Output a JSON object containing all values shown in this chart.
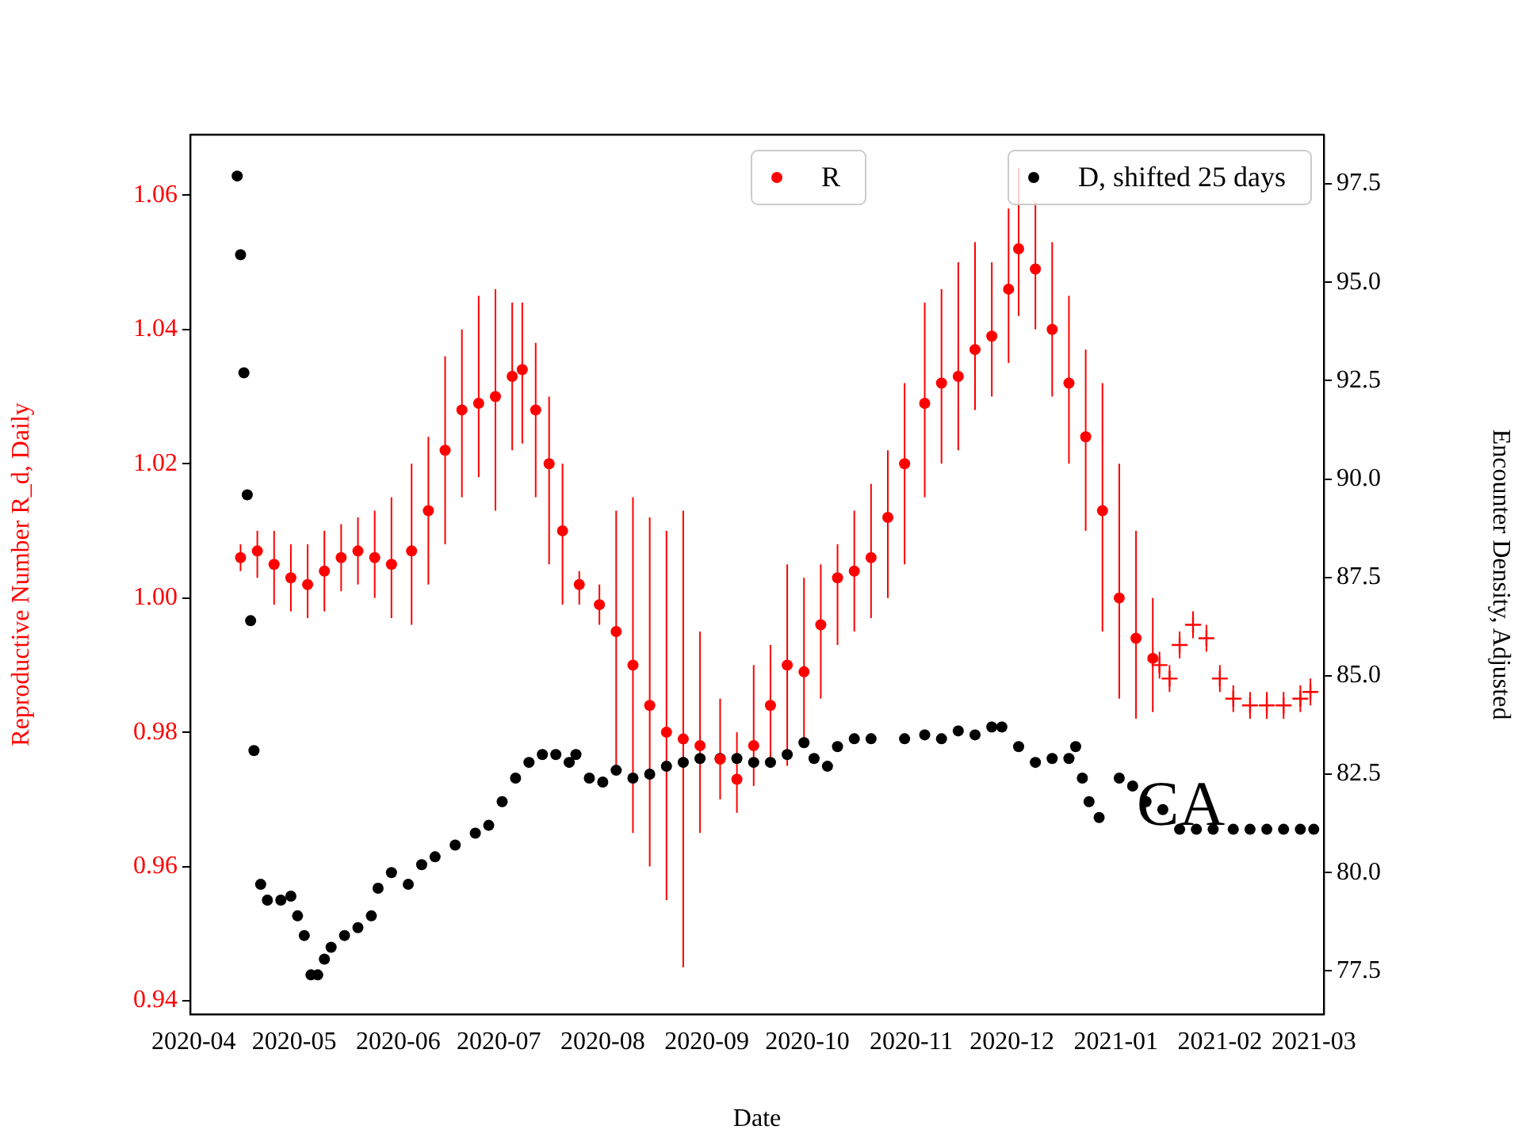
{
  "chart_data": {
    "type": "scatter",
    "xlabel": "Date",
    "ylabel": "Reproductive Number R_d, Daily",
    "y2label": "Encounter Density, Adjusted",
    "legend": "top right",
    "grid": false,
    "annotations": [
      "CA"
    ],
    "xlim": [
      "2020-03-31",
      "2021-03-04"
    ],
    "xticks": [
      {
        "value": "2020-04-01",
        "label": "2020-04"
      },
      {
        "value": "2020-05-01",
        "label": "2020-05"
      },
      {
        "value": "2020-06-01",
        "label": "2020-06"
      },
      {
        "value": "2020-07-01",
        "label": "2020-07"
      },
      {
        "value": "2020-08-01",
        "label": "2020-08"
      },
      {
        "value": "2020-09-01",
        "label": "2020-09"
      },
      {
        "value": "2020-10-01",
        "label": "2020-10"
      },
      {
        "value": "2020-11-01",
        "label": "2020-11"
      },
      {
        "value": "2020-12-01",
        "label": "2020-12"
      },
      {
        "value": "2021-01-01",
        "label": "2021-01"
      },
      {
        "value": "2021-02-01",
        "label": "2021-02"
      },
      {
        "value": "2021-03-01",
        "label": "2021-03"
      }
    ],
    "ylim": [
      0.938,
      1.069
    ],
    "yticks": [
      0.94,
      0.96,
      0.98,
      {
        "value": 1,
        "label": "1.00"
      },
      1.02,
      1.04,
      1.06
    ],
    "y2lim": [
      76.4,
      98.75
    ],
    "y2ticks": [
      77.5,
      {
        "value": 80,
        "label": "80.0"
      },
      82.5,
      {
        "value": 85,
        "label": "85.0"
      },
      87.5,
      {
        "value": 90,
        "label": "90.0"
      },
      92.5,
      {
        "value": 95,
        "label": "95.0"
      },
      97.5
    ],
    "series": [
      {
        "name": "R",
        "color": "#ff0000",
        "marker": "circle",
        "x": [
          "2020-04-15",
          "2020-04-20",
          "2020-04-25",
          "2020-04-30",
          "2020-05-05",
          "2020-05-10",
          "2020-05-15",
          "2020-05-20",
          "2020-05-25",
          "2020-05-30",
          "2020-06-05",
          "2020-06-10",
          "2020-06-15",
          "2020-06-20",
          "2020-06-25",
          "2020-06-30",
          "2020-07-05",
          "2020-07-08",
          "2020-07-12",
          "2020-07-16",
          "2020-07-20",
          "2020-07-25",
          "2020-07-31",
          "2020-08-05",
          "2020-08-10",
          "2020-08-15",
          "2020-08-20",
          "2020-08-25",
          "2020-08-30",
          "2020-09-05",
          "2020-09-10",
          "2020-09-15",
          "2020-09-20",
          "2020-09-25",
          "2020-09-30",
          "2020-10-05",
          "2020-10-10",
          "2020-10-15",
          "2020-10-20",
          "2020-10-25",
          "2020-10-30",
          "2020-11-05",
          "2020-11-10",
          "2020-11-15",
          "2020-11-20",
          "2020-11-25",
          "2020-11-30",
          "2020-12-03",
          "2020-12-08",
          "2020-12-13",
          "2020-12-18",
          "2020-12-23",
          "2020-12-28",
          "2021-01-02",
          "2021-01-07",
          "2021-01-12"
        ],
        "values": [
          1.006,
          1.007,
          1.005,
          1.003,
          1.002,
          1.004,
          1.006,
          1.007,
          1.006,
          1.005,
          1.007,
          1.013,
          1.022,
          1.028,
          1.029,
          1.03,
          1.033,
          1.034,
          1.028,
          1.02,
          1.01,
          1.002,
          0.999,
          0.995,
          0.99,
          0.984,
          0.98,
          0.979,
          0.978,
          0.976,
          0.973,
          0.978,
          0.984,
          0.99,
          0.989,
          0.996,
          1.003,
          1.004,
          1.006,
          1.012,
          1.02,
          1.029,
          1.032,
          1.033,
          1.037,
          1.039,
          1.046,
          1.052,
          1.049,
          1.04,
          1.032,
          1.024,
          1.013,
          1.0,
          0.994,
          0.991
        ],
        "errors": [
          [
            1.004,
            1.008
          ],
          [
            1.003,
            1.01
          ],
          [
            0.999,
            1.01
          ],
          [
            0.998,
            1.008
          ],
          [
            0.997,
            1.008
          ],
          [
            0.998,
            1.01
          ],
          [
            1.001,
            1.011
          ],
          [
            1.002,
            1.012
          ],
          [
            1.0,
            1.013
          ],
          [
            0.997,
            1.015
          ],
          [
            0.996,
            1.02
          ],
          [
            1.002,
            1.024
          ],
          [
            1.008,
            1.036
          ],
          [
            1.015,
            1.04
          ],
          [
            1.018,
            1.045
          ],
          [
            1.013,
            1.046
          ],
          [
            1.022,
            1.044
          ],
          [
            1.023,
            1.044
          ],
          [
            1.015,
            1.038
          ],
          [
            1.005,
            1.03
          ],
          [
            0.999,
            1.02
          ],
          [
            0.999,
            1.004
          ],
          [
            0.996,
            1.002
          ],
          [
            0.975,
            1.013
          ],
          [
            0.965,
            1.015
          ],
          [
            0.96,
            1.012
          ],
          [
            0.955,
            1.01
          ],
          [
            0.945,
            1.013
          ],
          [
            0.965,
            0.995
          ],
          [
            0.97,
            0.985
          ],
          [
            0.968,
            0.98
          ],
          [
            0.972,
            0.99
          ],
          [
            0.975,
            0.993
          ],
          [
            0.975,
            1.005
          ],
          [
            0.978,
            1.003
          ],
          [
            0.985,
            1.005
          ],
          [
            0.993,
            1.008
          ],
          [
            0.995,
            1.013
          ],
          [
            0.997,
            1.017
          ],
          [
            1.0,
            1.022
          ],
          [
            1.005,
            1.032
          ],
          [
            1.015,
            1.044
          ],
          [
            1.02,
            1.046
          ],
          [
            1.022,
            1.05
          ],
          [
            1.028,
            1.053
          ],
          [
            1.03,
            1.05
          ],
          [
            1.035,
            1.058
          ],
          [
            1.042,
            1.064
          ],
          [
            1.04,
            1.059
          ],
          [
            1.03,
            1.053
          ],
          [
            1.02,
            1.045
          ],
          [
            1.01,
            1.037
          ],
          [
            0.995,
            1.032
          ],
          [
            0.985,
            1.02
          ],
          [
            0.982,
            1.01
          ],
          [
            0.983,
            1.0
          ]
        ]
      },
      {
        "color": "#ff0000",
        "marker": "cross",
        "x": [
          "2021-01-14",
          "2021-01-17",
          "2021-01-20",
          "2021-01-24",
          "2021-01-28",
          "2021-02-01",
          "2021-02-05",
          "2021-02-10",
          "2021-02-15",
          "2021-02-20",
          "2021-02-25",
          "2021-02-28"
        ],
        "values": [
          0.99,
          0.988,
          0.993,
          0.996,
          0.994,
          0.988,
          0.985,
          0.984,
          0.984,
          0.984,
          0.985,
          0.986
        ],
        "errors": [
          [
            0.988,
            0.992
          ],
          [
            0.986,
            0.99
          ],
          [
            0.991,
            0.995
          ],
          [
            0.994,
            0.998
          ],
          [
            0.992,
            0.996
          ],
          [
            0.986,
            0.99
          ],
          [
            0.983,
            0.987
          ],
          [
            0.982,
            0.986
          ],
          [
            0.982,
            0.986
          ],
          [
            0.982,
            0.986
          ],
          [
            0.983,
            0.987
          ],
          [
            0.984,
            0.988
          ]
        ]
      },
      {
        "name": "D, shifted 25 days",
        "color": "#000000",
        "marker": "circle",
        "axis": "y2",
        "x": [
          "2020-04-14",
          "2020-04-15",
          "2020-04-16",
          "2020-04-17",
          "2020-04-18",
          "2020-04-19",
          "2020-04-21",
          "2020-04-23",
          "2020-04-27",
          "2020-04-30",
          "2020-05-02",
          "2020-05-04",
          "2020-05-06",
          "2020-05-08",
          "2020-05-10",
          "2020-05-12",
          "2020-05-16",
          "2020-05-20",
          "2020-05-24",
          "2020-05-26",
          "2020-05-30",
          "2020-06-04",
          "2020-06-08",
          "2020-06-12",
          "2020-06-18",
          "2020-06-24",
          "2020-06-28",
          "2020-07-02",
          "2020-07-06",
          "2020-07-10",
          "2020-07-14",
          "2020-07-18",
          "2020-07-22",
          "2020-07-24",
          "2020-07-28",
          "2020-08-01",
          "2020-08-05",
          "2020-08-10",
          "2020-08-15",
          "2020-08-20",
          "2020-08-25",
          "2020-08-30",
          "2020-09-05",
          "2020-09-10",
          "2020-09-15",
          "2020-09-20",
          "2020-09-25",
          "2020-09-30",
          "2020-10-03",
          "2020-10-07",
          "2020-10-10",
          "2020-10-15",
          "2020-10-20",
          "2020-10-30",
          "2020-11-05",
          "2020-11-10",
          "2020-11-15",
          "2020-11-20",
          "2020-11-25",
          "2020-11-28",
          "2020-12-03",
          "2020-12-08",
          "2020-12-13",
          "2020-12-18",
          "2020-12-20",
          "2020-12-22",
          "2020-12-24",
          "2020-12-27",
          "2021-01-02",
          "2021-01-06",
          "2021-01-10",
          "2021-01-15",
          "2021-01-20",
          "2021-01-25",
          "2021-01-30",
          "2021-02-05",
          "2021-02-10",
          "2021-02-15",
          "2021-02-20",
          "2021-02-25",
          "2021-03-01"
        ],
        "values": [
          97.7,
          95.7,
          92.7,
          89.6,
          86.4,
          83.1,
          79.7,
          79.3,
          79.3,
          79.4,
          78.9,
          78.4,
          77.4,
          77.4,
          77.8,
          78.1,
          78.4,
          78.6,
          78.9,
          79.6,
          80.0,
          79.7,
          80.2,
          80.4,
          80.7,
          81.0,
          81.2,
          81.8,
          82.4,
          82.8,
          83.0,
          83.0,
          82.8,
          83.0,
          82.4,
          82.3,
          82.6,
          82.4,
          82.5,
          82.7,
          82.8,
          82.9,
          82.9,
          82.9,
          82.8,
          82.8,
          83.0,
          83.3,
          82.9,
          82.7,
          83.2,
          83.4,
          83.4,
          83.4,
          83.5,
          83.4,
          83.6,
          83.5,
          83.7,
          83.7,
          83.2,
          82.8,
          82.9,
          82.9,
          83.2,
          82.4,
          81.8,
          81.4,
          82.4,
          82.2,
          81.8,
          81.6,
          81.1,
          81.1,
          81.1,
          81.1,
          81.1,
          81.1,
          81.1,
          81.1,
          81.1
        ]
      }
    ]
  }
}
